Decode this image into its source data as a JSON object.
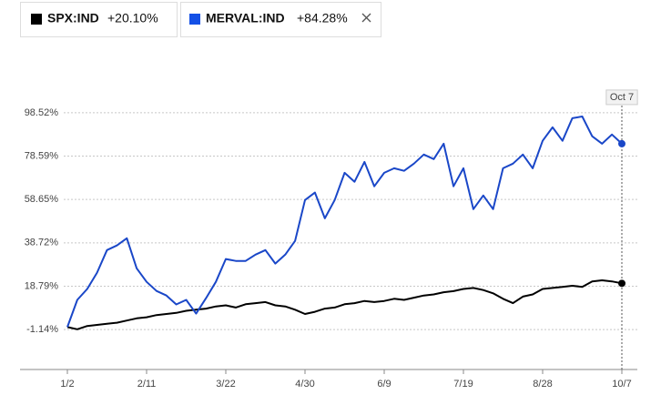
{
  "chart_data": {
    "type": "line",
    "categories": [
      "1/2",
      null,
      null,
      null,
      null,
      null,
      null,
      null,
      "2/11",
      null,
      null,
      null,
      null,
      null,
      null,
      null,
      "3/22",
      null,
      null,
      null,
      null,
      null,
      null,
      null,
      "4/30",
      null,
      null,
      null,
      null,
      null,
      null,
      null,
      "6/9",
      null,
      null,
      null,
      null,
      null,
      null,
      null,
      "7/19",
      null,
      null,
      null,
      null,
      null,
      null,
      null,
      "8/28",
      null,
      null,
      null,
      null,
      null,
      null,
      null,
      "10/7"
    ],
    "series": [
      {
        "name": "SPX:IND",
        "change_label": "+20.10%",
        "color": "#000000",
        "values": [
          0,
          -1,
          0.5,
          1,
          1.5,
          2,
          3,
          4,
          4.5,
          5.5,
          6,
          6.5,
          7.5,
          8,
          8.5,
          9.5,
          10,
          9,
          10.5,
          11,
          11.5,
          10,
          9.5,
          8,
          6,
          7,
          8.5,
          9,
          10.5,
          11,
          12,
          11.5,
          12,
          13,
          12.5,
          13.5,
          14.5,
          15,
          16,
          16.5,
          17.5,
          18,
          17,
          15.5,
          13,
          11,
          14,
          15,
          17.5,
          18,
          18.5,
          19,
          18.5,
          21,
          21.5,
          21,
          20.1
        ]
      },
      {
        "name": "MERVAL:IND",
        "change_label": "+84.28%",
        "color": "#1a47c8",
        "values": [
          0,
          12.5,
          17.5,
          25,
          35.4,
          37.5,
          40.8,
          27,
          20.8,
          16.6,
          14.5,
          10.4,
          12.5,
          6.2,
          13.3,
          20.8,
          31.3,
          30.4,
          30.4,
          33.3,
          35.4,
          29.2,
          33.3,
          39.6,
          58.4,
          61.8,
          50,
          58.4,
          70.9,
          66.8,
          75.9,
          64.7,
          70.9,
          73,
          71.8,
          75.1,
          79.3,
          77.2,
          84.3,
          64.7,
          73,
          54.2,
          60.5,
          54.2,
          73,
          75.1,
          79.3,
          73,
          85.6,
          91.8,
          85.6,
          96,
          96.8,
          87.7,
          84.3,
          88.5,
          84.28
        ]
      }
    ],
    "ylim": [
      -19.5,
      108.5
    ],
    "yticks": [
      {
        "value": -1.14,
        "label": "-1.14%"
      },
      {
        "value": 18.79,
        "label": "18.79%"
      },
      {
        "value": 38.72,
        "label": "38.72%"
      },
      {
        "value": 58.65,
        "label": "58.65%"
      },
      {
        "value": 78.59,
        "label": "78.59%"
      },
      {
        "value": 98.52,
        "label": "98.52%"
      }
    ],
    "grid": true,
    "annotation": "Oct 7"
  }
}
